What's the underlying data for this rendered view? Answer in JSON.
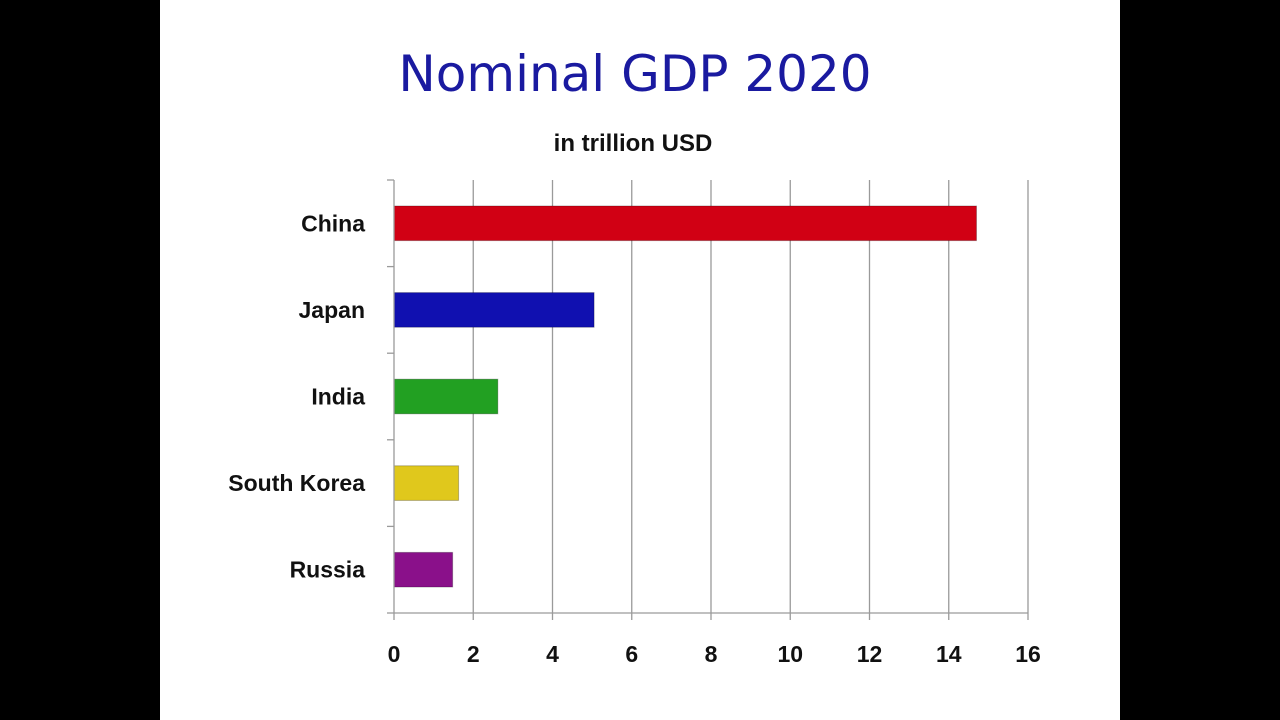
{
  "chart_data": {
    "type": "bar",
    "orientation": "horizontal",
    "title": "Nominal GDP 2020",
    "subtitle": "in trillion USD",
    "xlabel": "",
    "ylabel": "",
    "categories": [
      "China",
      "Japan",
      "India",
      "South Korea",
      "Russia"
    ],
    "values": [
      14.7,
      5.05,
      2.62,
      1.63,
      1.48
    ],
    "colors": [
      "#d10014",
      "#1010b0",
      "#22a022",
      "#e0c81c",
      "#8a108a"
    ],
    "xlim": [
      0,
      16
    ],
    "xticks": [
      0,
      2,
      4,
      6,
      8,
      10,
      12,
      14,
      16
    ],
    "grid": "vertical",
    "legend": "none"
  }
}
